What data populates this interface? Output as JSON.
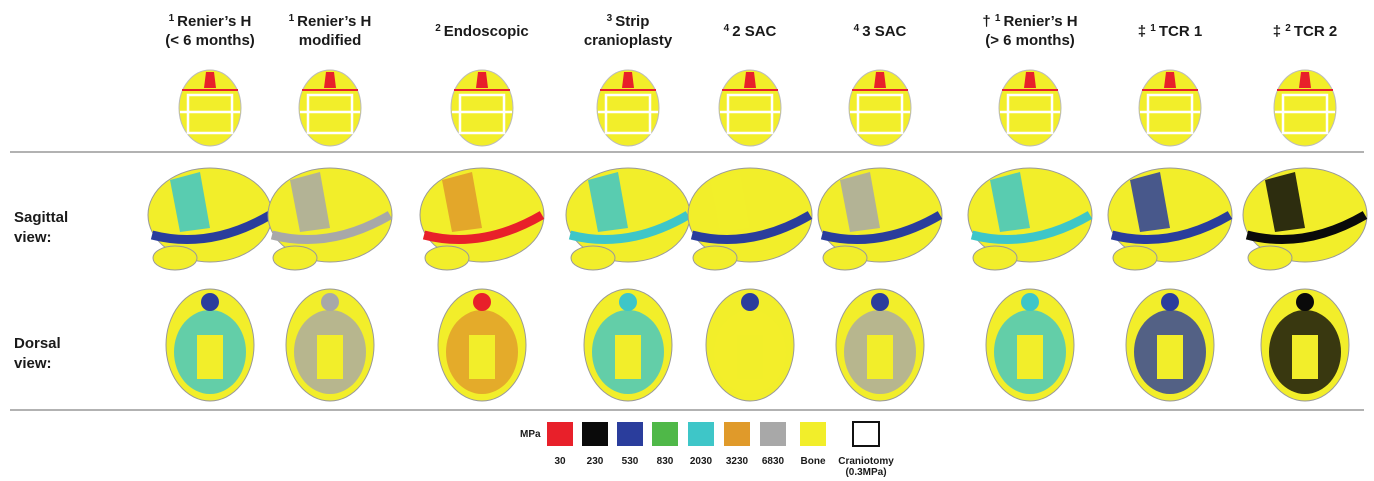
{
  "figure": {
    "columns": [
      {
        "mark": null,
        "sup": "1",
        "lines": [
          "Renier’s H",
          "(< 6 months)"
        ]
      },
      {
        "mark": null,
        "sup": "1",
        "lines": [
          "Renier’s H",
          "modified"
        ]
      },
      {
        "mark": null,
        "sup": "2",
        "lines": [
          "Endoscopic"
        ]
      },
      {
        "mark": null,
        "sup": "3",
        "lines": [
          "Strip",
          "cranioplasty"
        ]
      },
      {
        "mark": null,
        "sup": "4",
        "lines": [
          "2 SAC"
        ]
      },
      {
        "mark": null,
        "sup": "4",
        "lines": [
          "3 SAC"
        ]
      },
      {
        "mark": "†",
        "sup": "1",
        "lines": [
          "Renier’s H",
          "(> 6 months)"
        ]
      },
      {
        "mark": "‡",
        "sup": "1",
        "lines": [
          "TCR 1"
        ]
      },
      {
        "mark": "‡",
        "sup": "2",
        "lines": [
          "TCR 2"
        ]
      }
    ],
    "rows": [
      {
        "lines": [
          "Sagittal",
          "view:"
        ]
      },
      {
        "lines": [
          "Dorsal",
          "view:"
        ]
      }
    ],
    "legend": {
      "unit": "MPa",
      "items": [
        {
          "color": "#e8202a",
          "lines": [
            "30"
          ]
        },
        {
          "color": "#0a0a0a",
          "lines": [
            "230"
          ]
        },
        {
          "color": "#2a3d9c",
          "lines": [
            "530"
          ]
        },
        {
          "color": "#4fb848",
          "lines": [
            "830"
          ]
        },
        {
          "color": "#3ec6c8",
          "lines": [
            "2030"
          ]
        },
        {
          "color": "#e09a2a",
          "lines": [
            "3230"
          ]
        },
        {
          "color": "#a8a8a8",
          "lines": [
            "6830"
          ]
        },
        {
          "color": "#f2ee2a",
          "lines": [
            "Bone"
          ]
        },
        {
          "color": "#ffffff",
          "lines": [
            "Craniotomy",
            "(0.3MPa)"
          ]
        }
      ]
    }
  }
}
